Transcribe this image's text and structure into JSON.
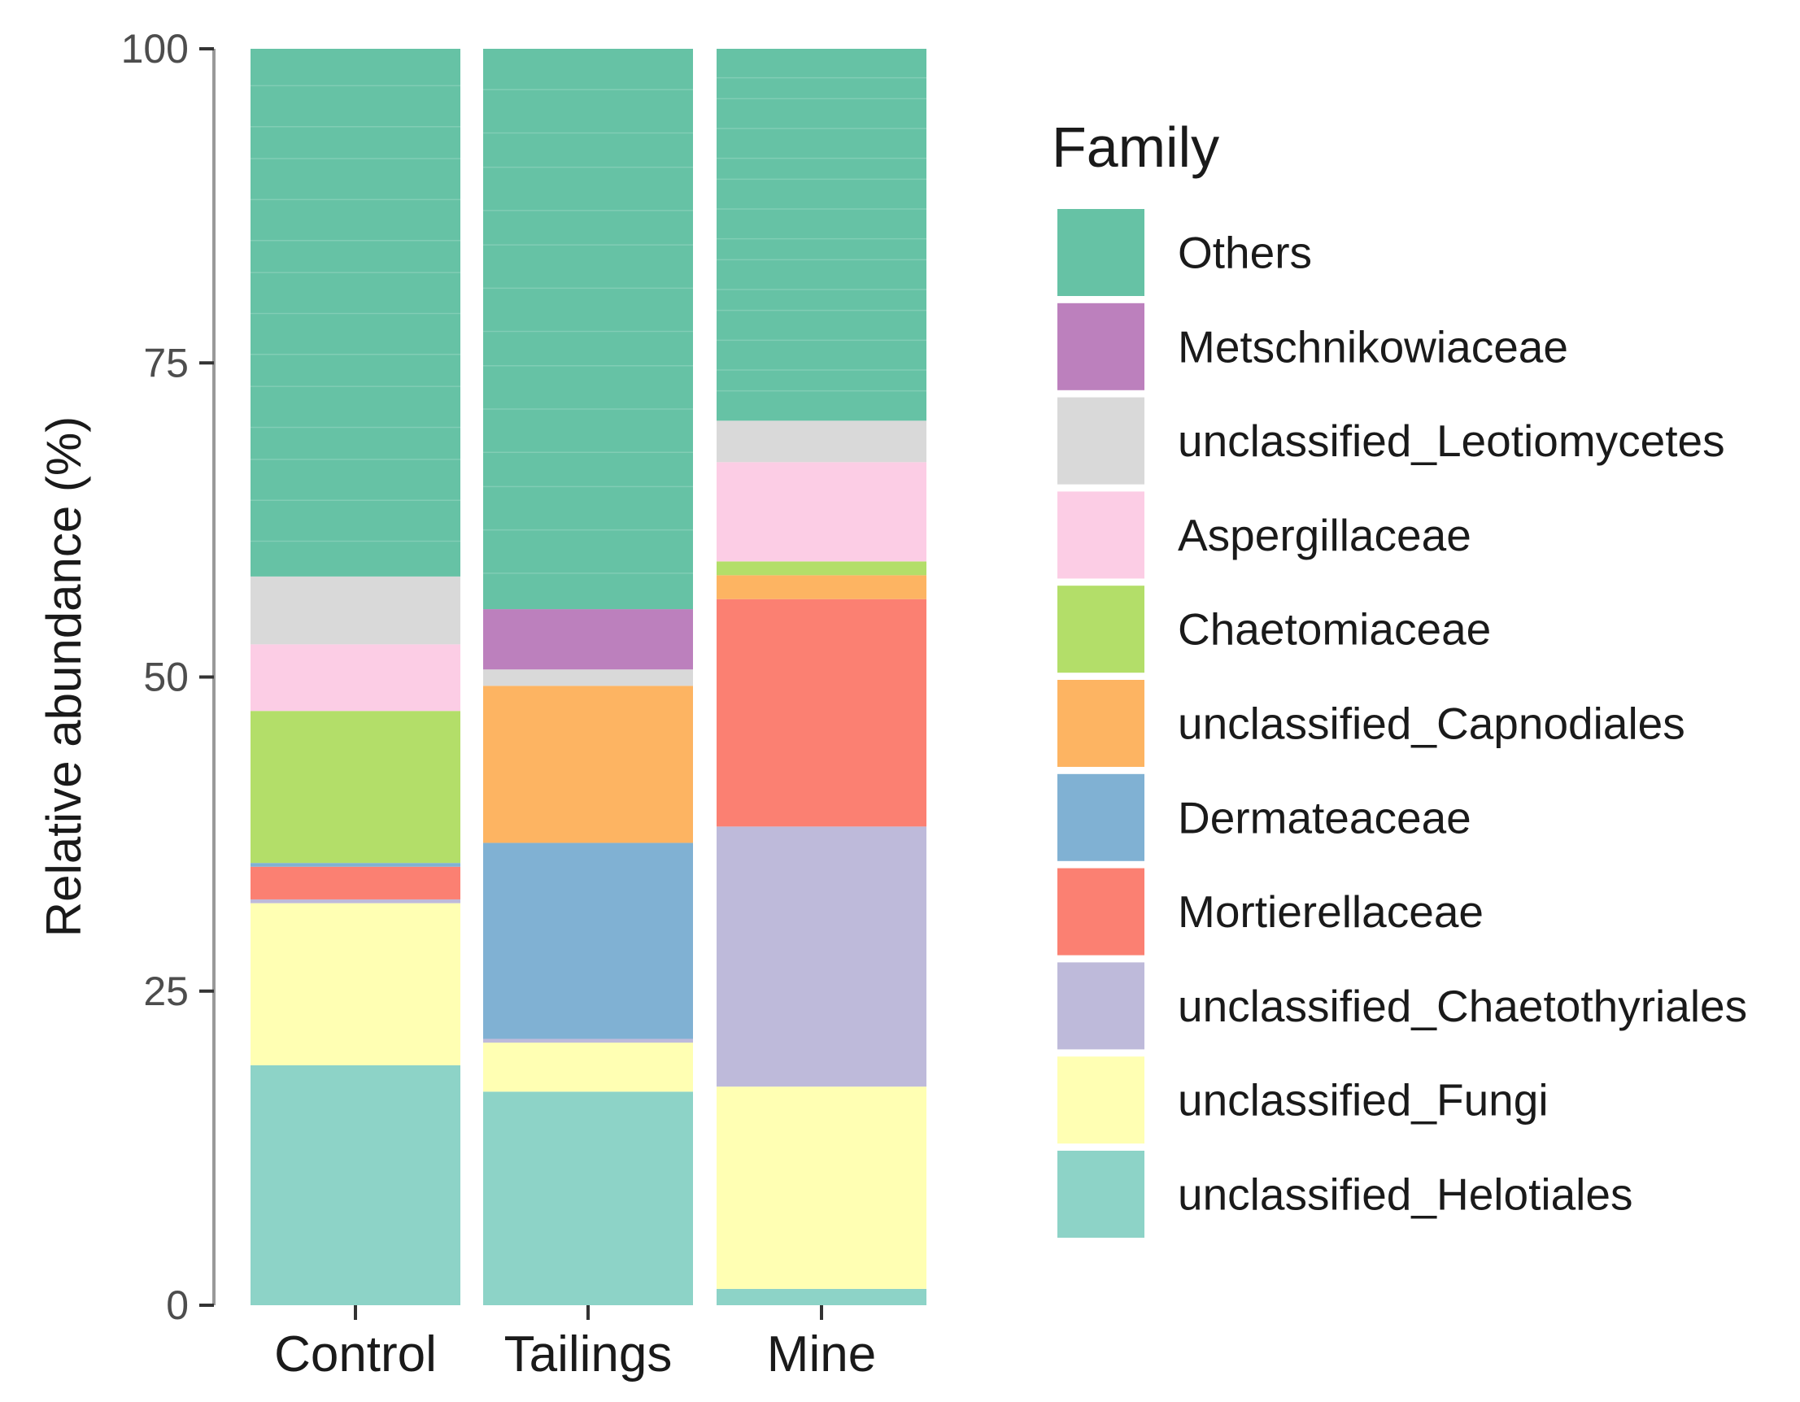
{
  "chart_data": {
    "type": "bar",
    "stacked": true,
    "ylabel": "Relative abundance (%)",
    "ylim": [
      0,
      100
    ],
    "yticks": [
      "0",
      "25",
      "50",
      "75",
      "100"
    ],
    "categories": [
      "Control",
      "Tailings",
      "Mine"
    ],
    "legend_title": "Family",
    "legend_position": "right",
    "series": [
      {
        "name": "unclassified_Helotiales",
        "color": "#8DD3C7",
        "values": [
          19.1,
          17.0,
          1.3
        ]
      },
      {
        "name": "unclassified_Fungi",
        "color": "#FFFFB3",
        "values": [
          12.9,
          3.9,
          16.1
        ]
      },
      {
        "name": "unclassified_Chaetothyriales",
        "color": "#BEBADA",
        "values": [
          0.3,
          0.3,
          20.7
        ]
      },
      {
        "name": "Mortierellaceae",
        "color": "#FB8072",
        "values": [
          2.6,
          0.0,
          18.1
        ]
      },
      {
        "name": "Dermateaceae",
        "color": "#80B1D3",
        "values": [
          0.3,
          15.6,
          0.0
        ]
      },
      {
        "name": "unclassified_Capnodiales",
        "color": "#FDB462",
        "values": [
          0.0,
          12.5,
          1.9
        ]
      },
      {
        "name": "Chaetomiaceae",
        "color": "#B3DE69",
        "values": [
          12.1,
          0.0,
          1.1
        ]
      },
      {
        "name": "Aspergillaceae",
        "color": "#FCCDE5",
        "values": [
          5.3,
          0.0,
          7.9
        ]
      },
      {
        "name": "unclassified_Leotiomycetes",
        "color": "#D9D9D9",
        "values": [
          5.4,
          1.3,
          3.3
        ]
      },
      {
        "name": "Metschnikowiaceae",
        "color": "#BC80BD",
        "values": [
          0.0,
          4.8,
          0.0
        ]
      },
      {
        "name": "Others",
        "color": "#66C2A5",
        "values": [
          42.0,
          44.6,
          29.6
        ]
      }
    ],
    "legend_order": [
      "Others",
      "Metschnikowiaceae",
      "unclassified_Leotiomycetes",
      "Aspergillaceae",
      "Chaetomiaceae",
      "unclassified_Capnodiales",
      "Dermateaceae",
      "Mortierellaceae",
      "unclassified_Chaetothyriales",
      "unclassified_Fungi",
      "unclassified_Helotiales"
    ]
  }
}
